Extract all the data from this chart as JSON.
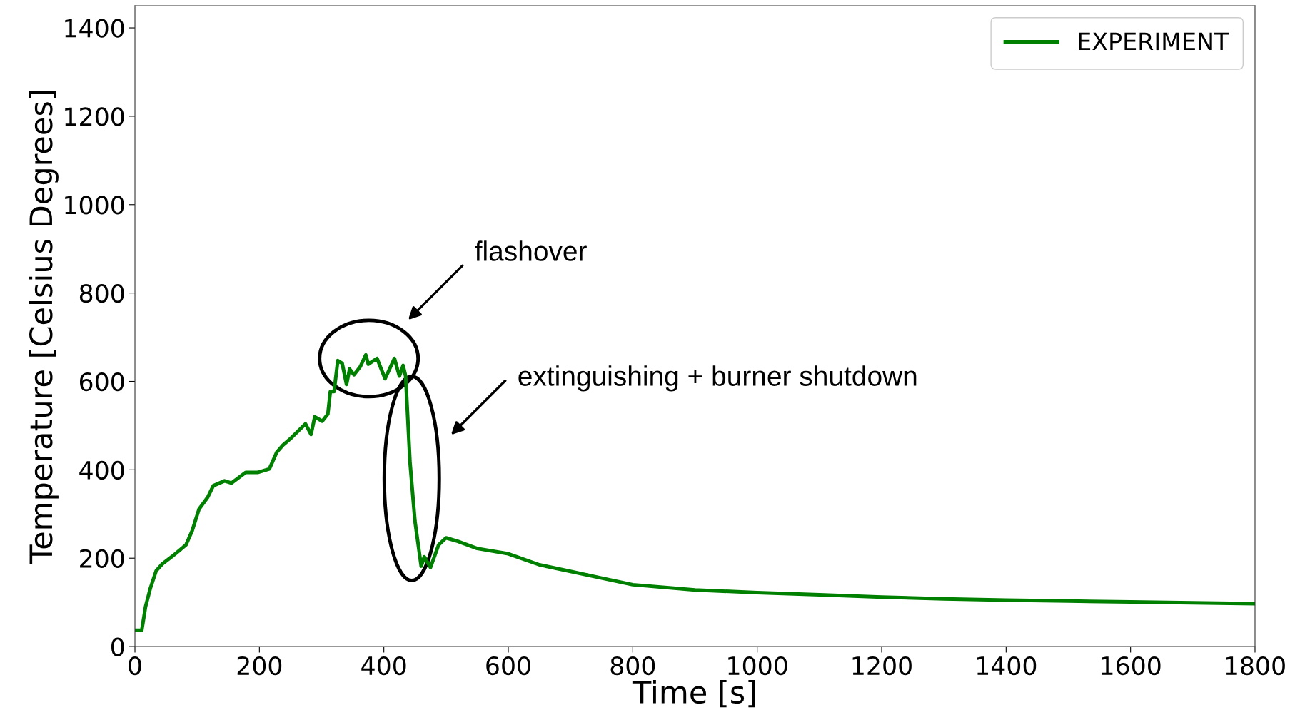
{
  "chart_data": {
    "type": "line",
    "xlabel": "Time [s]",
    "ylabel": "Temperature [Celsius Degrees]",
    "xlim": [
      0,
      1800
    ],
    "xticks": [
      0,
      200,
      400,
      600,
      800,
      1000,
      1200,
      1400,
      1600,
      1800
    ],
    "ylim": [
      0,
      1450
    ],
    "yticks": [
      0,
      200,
      400,
      600,
      800,
      1000,
      1200,
      1400
    ],
    "grid": false,
    "legend": "top right",
    "marker": "none",
    "line_style": "solid",
    "x": [
      0,
      11,
      17,
      25,
      34,
      44,
      59,
      82,
      92,
      103,
      117,
      126,
      144,
      155,
      178,
      197,
      216,
      228,
      238,
      251,
      274,
      283,
      289,
      301,
      310,
      314,
      320,
      326,
      333,
      340,
      345,
      352,
      362,
      371,
      375,
      389,
      402,
      417,
      425,
      431,
      435,
      442,
      450,
      460,
      465,
      475,
      488,
      500,
      519,
      550,
      600,
      650,
      700,
      750,
      800,
      900,
      1000,
      1100,
      1200,
      1300,
      1400,
      1500,
      1600,
      1700,
      1800
    ],
    "series": [
      {
        "name": "EXPERIMENT",
        "color": "#008000",
        "values": [
          37,
          37,
          90,
          133,
          171,
          187,
          203,
          230,
          262,
          311,
          338,
          364,
          375,
          370,
          394,
          394,
          402,
          440,
          456,
          472,
          504,
          480,
          520,
          510,
          526,
          577,
          577,
          647,
          641,
          593,
          628,
          615,
          633,
          660,
          639,
          652,
          606,
          652,
          612,
          636,
          612,
          418,
          284,
          182,
          203,
          179,
          230,
          246,
          238,
          222,
          210,
          185,
          170,
          155,
          140,
          128,
          122,
          117,
          112,
          108,
          105,
          103,
          101,
          99,
          97
        ]
      }
    ],
    "annotations": [
      "flashover",
      "extinguishing + burner shutdown"
    ]
  }
}
